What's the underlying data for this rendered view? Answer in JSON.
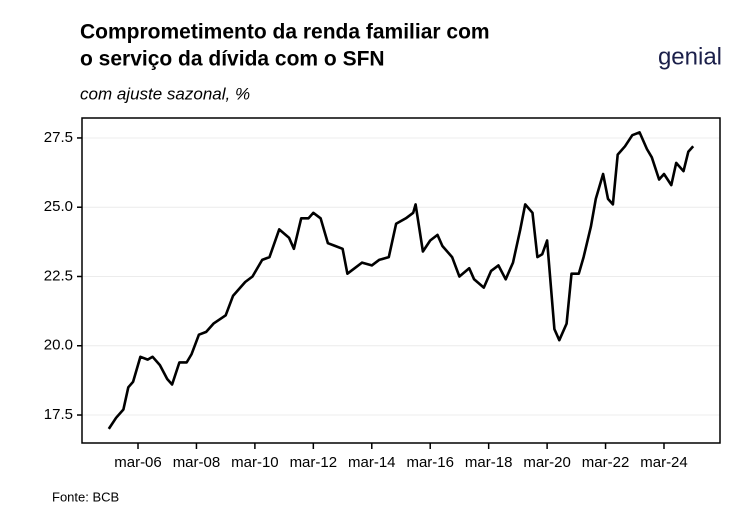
{
  "title_lines": [
    "Comprometimento da renda familiar com",
    "o serviço da dívida com o SFN"
  ],
  "logo": "genial",
  "chart_data": {
    "type": "line",
    "subtitle": "com ajuste sazonal, %",
    "source": "Fonte: BCB",
    "color": "#000000",
    "grid": true,
    "xlim": [
      "2004-04",
      "2026-02"
    ],
    "xticks": [
      {
        "value": "2006-03",
        "label": "mar-06"
      },
      {
        "value": "2008-03",
        "label": "mar-08"
      },
      {
        "value": "2010-03",
        "label": "mar-10"
      },
      {
        "value": "2012-03",
        "label": "mar-12"
      },
      {
        "value": "2014-03",
        "label": "mar-14"
      },
      {
        "value": "2016-03",
        "label": "mar-16"
      },
      {
        "value": "2018-03",
        "label": "mar-18"
      },
      {
        "value": "2020-03",
        "label": "mar-20"
      },
      {
        "value": "2022-03",
        "label": "mar-22"
      },
      {
        "value": "2024-03",
        "label": "mar-24"
      }
    ],
    "ylim": [
      16.49,
      28.22
    ],
    "yticks": [
      {
        "value": 17.5,
        "label": "17.5"
      },
      {
        "value": 20,
        "label": "20.0"
      },
      {
        "value": 22.5,
        "label": "22.5"
      },
      {
        "value": 25,
        "label": "25.0"
      },
      {
        "value": 27.5,
        "label": "27.5"
      }
    ],
    "x": [
      "2005-03",
      "2005-06",
      "2005-09",
      "2005-11",
      "2006-01",
      "2006-04",
      "2006-07",
      "2006-09",
      "2006-12",
      "2007-03",
      "2007-05",
      "2007-08",
      "2007-11",
      "2008-01",
      "2008-04",
      "2008-07",
      "2008-10",
      "2009-03",
      "2009-06",
      "2009-11",
      "2010-02",
      "2010-06",
      "2010-09",
      "2011-01",
      "2011-05",
      "2011-07",
      "2011-10",
      "2012-01",
      "2012-03",
      "2012-06",
      "2012-09",
      "2012-12",
      "2013-03",
      "2013-05",
      "2013-08",
      "2013-11",
      "2014-03",
      "2014-06",
      "2014-10",
      "2015-01",
      "2015-05",
      "2015-08",
      "2015-09",
      "2015-12",
      "2016-03",
      "2016-06",
      "2016-08",
      "2016-12",
      "2017-03",
      "2017-07",
      "2017-09",
      "2018-01",
      "2018-04",
      "2018-07",
      "2018-10",
      "2019-01",
      "2019-04",
      "2019-06",
      "2019-09",
      "2019-11",
      "2020-01",
      "2020-03",
      "2020-06",
      "2020-08",
      "2020-11",
      "2021-01",
      "2021-04",
      "2021-06",
      "2021-09",
      "2021-11",
      "2022-02",
      "2022-04",
      "2022-06",
      "2022-08",
      "2022-11",
      "2023-02",
      "2023-05",
      "2023-08",
      "2023-10",
      "2024-01",
      "2024-03",
      "2024-06",
      "2024-08",
      "2024-11",
      "2025-01",
      "2025-03"
    ],
    "series": [
      {
        "name": "Comprometimento",
        "color": "#000000",
        "values": [
          17.0,
          17.4,
          17.7,
          18.5,
          18.7,
          19.6,
          19.5,
          19.6,
          19.3,
          18.8,
          18.6,
          19.4,
          19.4,
          19.7,
          20.4,
          20.5,
          20.8,
          21.1,
          21.8,
          22.3,
          22.5,
          23.1,
          23.2,
          24.2,
          23.9,
          23.5,
          24.6,
          24.6,
          24.8,
          24.6,
          23.7,
          23.6,
          23.5,
          22.6,
          22.8,
          23.0,
          22.9,
          23.1,
          23.2,
          24.4,
          24.6,
          24.8,
          25.1,
          23.4,
          23.8,
          24.0,
          23.6,
          23.2,
          22.5,
          22.8,
          22.4,
          22.1,
          22.7,
          22.9,
          22.4,
          23.0,
          24.2,
          25.1,
          24.8,
          23.2,
          23.3,
          23.8,
          20.6,
          20.2,
          20.8,
          22.6,
          22.6,
          23.2,
          24.3,
          25.3,
          26.2,
          25.3,
          25.1,
          26.9,
          27.2,
          27.6,
          27.7,
          27.1,
          26.8,
          26.0,
          26.2,
          25.8,
          26.6,
          26.3,
          27.0,
          27.2
        ]
      }
    ]
  }
}
